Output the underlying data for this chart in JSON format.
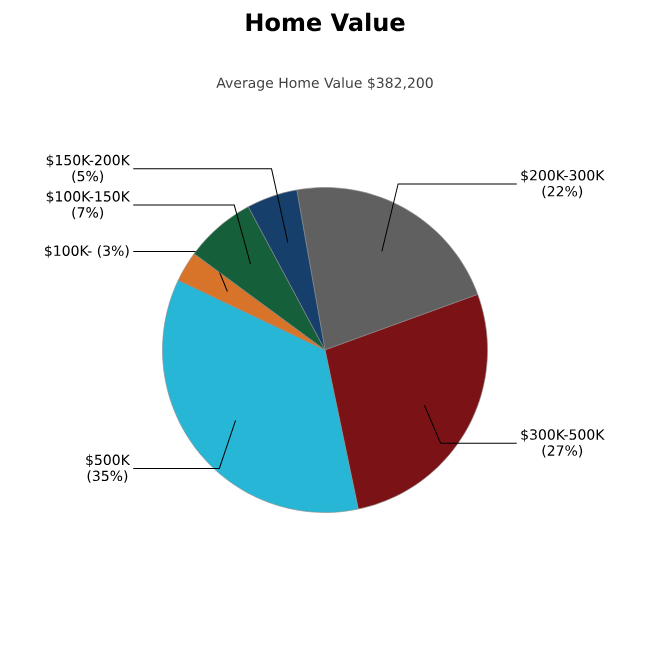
{
  "chart_data": {
    "type": "pie",
    "title": "Home Value",
    "subtitle": "Average Home Value  $382,200",
    "categories": [
      "$200K-300K",
      "$300K-500K",
      "$500K",
      "$100K-",
      "$100K-150K",
      "$150K-200K"
    ],
    "values": [
      22,
      27,
      35,
      3,
      7,
      5
    ],
    "value_labels": [
      "(22%)",
      "(27%)",
      "(35%)",
      "(3%)",
      "(7%)",
      "(5%)"
    ],
    "colors": [
      "#606060",
      "#7b1216",
      "#27b6d6",
      "#d8742a",
      "#15603a",
      "#163f6b"
    ]
  }
}
